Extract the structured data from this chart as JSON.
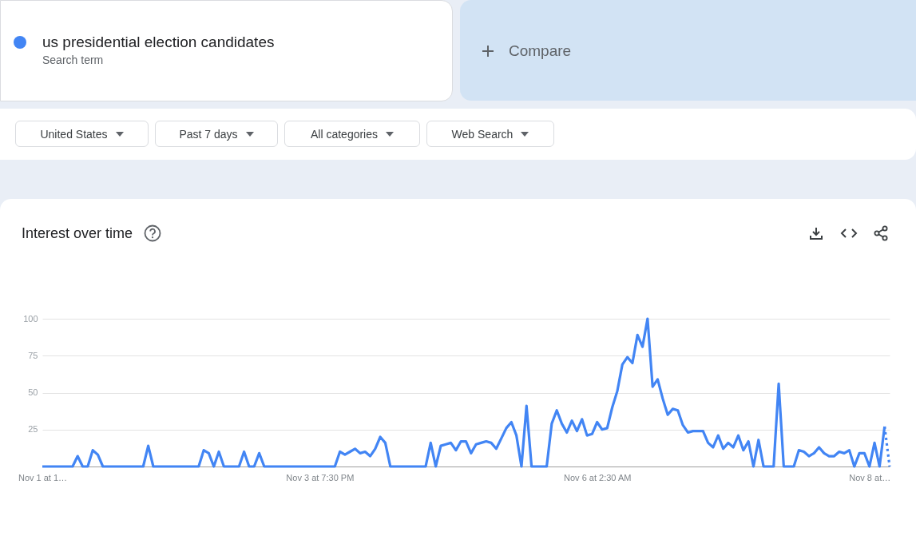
{
  "chart_data": {
    "type": "line",
    "title": "Interest over time",
    "annotations": [
      "Search term",
      "Compare",
      "United States",
      "Past 7 days",
      "All categories",
      "Web Search"
    ],
    "categories": [
      "Nov 1 at 1…",
      null,
      null,
      null,
      null,
      null,
      null,
      null,
      null,
      null,
      null,
      null,
      null,
      null,
      null,
      null,
      null,
      null,
      null,
      null,
      null,
      null,
      null,
      null,
      null,
      null,
      null,
      null,
      null,
      null,
      null,
      null,
      null,
      null,
      null,
      null,
      null,
      null,
      null,
      null,
      null,
      null,
      null,
      null,
      null,
      null,
      null,
      null,
      null,
      null,
      null,
      null,
      null,
      null,
      null,
      "Nov 3 at 7:30 PM",
      null,
      null,
      null,
      null,
      null,
      null,
      null,
      null,
      null,
      null,
      null,
      null,
      null,
      null,
      null,
      null,
      null,
      null,
      null,
      null,
      null,
      null,
      null,
      null,
      null,
      null,
      null,
      null,
      null,
      null,
      null,
      null,
      null,
      null,
      null,
      null,
      null,
      null,
      null,
      null,
      null,
      null,
      null,
      null,
      null,
      null,
      null,
      null,
      null,
      null,
      null,
      null,
      null,
      null,
      "Nov 6 at 2:30 AM",
      null,
      null,
      null,
      null,
      null,
      null,
      null,
      null,
      null,
      null,
      null,
      null,
      null,
      null,
      null,
      null,
      null,
      null,
      null,
      null,
      null,
      null,
      null,
      null,
      null,
      null,
      null,
      null,
      null,
      null,
      null,
      null,
      null,
      null,
      null,
      null,
      null,
      null,
      null,
      null,
      null,
      null,
      null,
      null,
      null,
      null,
      null,
      null,
      null,
      null,
      null,
      null,
      null,
      "Nov 8 at…",
      null,
      null,
      null,
      null
    ],
    "series": [
      {
        "name": "us presidential election candidates",
        "color": "#4285f4",
        "values": [
          0,
          0,
          0,
          0,
          0,
          0,
          0,
          7,
          0,
          0,
          11,
          8,
          0,
          0,
          0,
          0,
          0,
          0,
          0,
          0,
          0,
          14,
          0,
          0,
          0,
          0,
          0,
          0,
          0,
          0,
          0,
          0,
          11,
          9,
          0,
          10,
          0,
          0,
          0,
          0,
          10,
          0,
          0,
          9,
          0,
          0,
          0,
          0,
          0,
          0,
          0,
          0,
          0,
          0,
          0,
          0,
          0,
          0,
          0,
          10,
          8,
          10,
          12,
          9,
          10,
          7,
          12,
          20,
          16,
          0,
          0,
          0,
          0,
          0,
          0,
          0,
          0,
          16,
          0,
          14,
          15,
          16,
          11,
          17,
          17,
          9,
          15,
          16,
          17,
          16,
          12,
          19,
          26,
          30,
          21,
          0,
          41,
          0,
          0,
          0,
          0,
          29,
          38,
          29,
          23,
          31,
          24,
          32,
          21,
          22,
          30,
          25,
          26,
          40,
          51,
          69,
          74,
          70,
          89,
          81,
          100,
          54,
          59,
          46,
          35,
          39,
          38,
          28,
          23,
          24,
          24,
          24,
          16,
          13,
          21,
          12,
          16,
          13,
          21,
          11,
          17,
          0,
          18,
          0,
          0,
          0,
          56,
          0,
          0,
          0,
          11,
          10,
          7,
          9,
          13,
          9,
          7,
          7,
          10,
          9,
          11,
          0,
          9,
          9,
          0,
          16,
          0,
          27,
          null
        ]
      },
      {
        "color": "#4285f4",
        "line_style": "dotted",
        "values": [
          null,
          null,
          null,
          null,
          null,
          null,
          null,
          null,
          null,
          null,
          null,
          null,
          null,
          null,
          null,
          null,
          null,
          null,
          null,
          null,
          null,
          null,
          null,
          null,
          null,
          null,
          null,
          null,
          null,
          null,
          null,
          null,
          null,
          null,
          null,
          null,
          null,
          null,
          null,
          null,
          null,
          null,
          null,
          null,
          null,
          null,
          null,
          null,
          null,
          null,
          null,
          null,
          null,
          null,
          null,
          null,
          null,
          null,
          null,
          null,
          null,
          null,
          null,
          null,
          null,
          null,
          null,
          null,
          null,
          null,
          null,
          null,
          null,
          null,
          null,
          null,
          null,
          null,
          null,
          null,
          null,
          null,
          null,
          null,
          null,
          null,
          null,
          null,
          null,
          null,
          null,
          null,
          null,
          null,
          null,
          null,
          null,
          null,
          null,
          null,
          null,
          null,
          null,
          null,
          null,
          null,
          null,
          null,
          null,
          null,
          null,
          null,
          null,
          null,
          null,
          null,
          null,
          null,
          null,
          null,
          null,
          null,
          null,
          null,
          null,
          null,
          null,
          null,
          null,
          null,
          null,
          null,
          null,
          null,
          null,
          null,
          null,
          null,
          null,
          null,
          null,
          null,
          null,
          null,
          null,
          null,
          null,
          null,
          null,
          null,
          null,
          null,
          null,
          null,
          null,
          null,
          null,
          null,
          null,
          null,
          null,
          null,
          null,
          null,
          null,
          null,
          null,
          27,
          0
        ]
      }
    ],
    "ylim": [
      0,
      100
    ],
    "yticks": [
      {
        "value": 0,
        "label": null
      },
      25,
      50,
      75,
      100
    ],
    "grid": "y",
    "legend": "top left",
    "line_style": "solid"
  }
}
